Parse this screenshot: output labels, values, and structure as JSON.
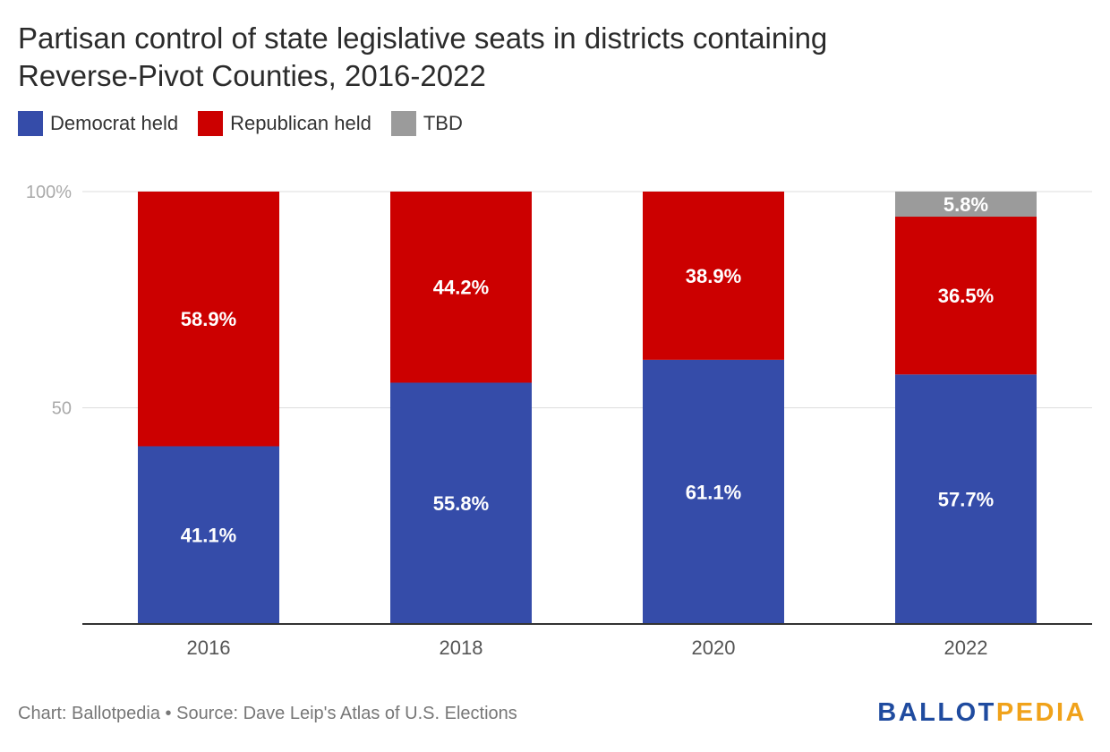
{
  "chart_data": {
    "type": "bar",
    "stacked": true,
    "title": "Partisan control of state legislative seats in districts containing Reverse-Pivot Counties, 2016-2022",
    "categories": [
      "2016",
      "2018",
      "2020",
      "2022"
    ],
    "series": [
      {
        "name": "Democrat held",
        "color": "#354ca9",
        "values": [
          41.1,
          55.8,
          61.1,
          57.7
        ],
        "labels": [
          "41.1%",
          "55.8%",
          "61.1%",
          "57.7%"
        ]
      },
      {
        "name": "Republican held",
        "color": "#cc0000",
        "values": [
          58.9,
          44.2,
          38.9,
          36.5
        ],
        "labels": [
          "58.9%",
          "44.2%",
          "38.9%",
          "36.5%"
        ]
      },
      {
        "name": "TBD",
        "color": "#9b9b9b",
        "values": [
          0,
          0,
          0,
          5.8
        ],
        "labels": [
          "",
          "",
          "",
          "5.8%"
        ]
      }
    ],
    "ylim": [
      0,
      100
    ],
    "yticks": [
      {
        "value": 50,
        "label": "50"
      },
      {
        "value": 100,
        "label": "100%"
      }
    ],
    "grid": true,
    "legend": "top-left"
  },
  "footer": {
    "source": "Chart: Ballotpedia • Source: Dave Leip's Atlas of U.S. Elections"
  },
  "logo": {
    "part1": "BALLOT",
    "part2": "PEDIA",
    "color1": "#1f4b9f",
    "color2": "#f0a21a"
  }
}
